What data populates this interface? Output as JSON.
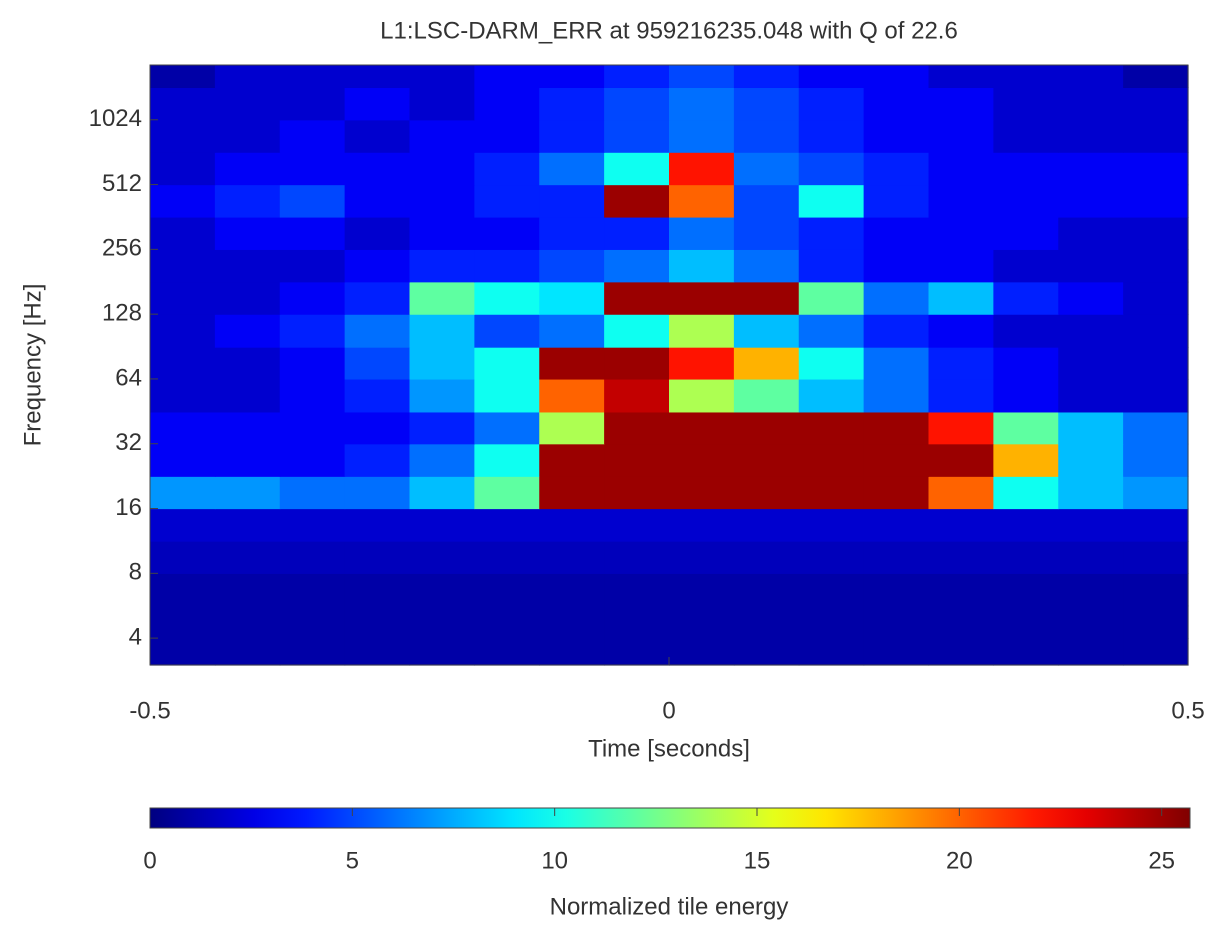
{
  "chart_data": {
    "type": "heatmap",
    "title": "L1:LSC-DARM_ERR at 959216235.048 with Q of 22.6",
    "xlabel": "Time [seconds]",
    "ylabel": "Frequency [Hz]",
    "colorbar_label": "Normalized tile energy",
    "colormap": "jet",
    "log_y": true,
    "log_base": 2,
    "xlim": [
      -0.5,
      0.5
    ],
    "xticks": [
      -0.5,
      0,
      0.5
    ],
    "ylim": [
      3,
      1840
    ],
    "yticks": [
      4,
      8,
      16,
      32,
      64,
      128,
      256,
      512,
      1024
    ],
    "clim": [
      0,
      25.7
    ],
    "cticks": [
      0,
      5,
      10,
      15,
      20,
      25
    ],
    "x_edges": [
      -0.5,
      -0.4375,
      -0.375,
      -0.3125,
      -0.25,
      -0.1875,
      -0.125,
      -0.0625,
      0,
      0.0625,
      0.125,
      0.1875,
      0.25,
      0.3125,
      0.375,
      0.4375,
      0.5
    ],
    "y_edges": [
      3,
      4,
      5.66,
      8,
      11.3,
      16,
      22.6,
      32,
      45,
      64,
      90,
      128,
      181,
      256,
      362,
      512,
      724,
      1024,
      1448,
      1840
    ],
    "z": [
      [
        1,
        1,
        1,
        1,
        1,
        1,
        1,
        1,
        1,
        1,
        1,
        1,
        1,
        1,
        1,
        1
      ],
      [
        1,
        1,
        1,
        1,
        1,
        1,
        1,
        1,
        1,
        1,
        1,
        1,
        1,
        1,
        1,
        1
      ],
      [
        1,
        1,
        1,
        1,
        1,
        1,
        1,
        1,
        1,
        1,
        1,
        1,
        1,
        1,
        1,
        1
      ],
      [
        1.5,
        1.5,
        1.5,
        1.5,
        1.5,
        1.5,
        1.5,
        1.5,
        1.5,
        1.5,
        1.5,
        1.5,
        1.5,
        1.5,
        1.5,
        1.5
      ],
      [
        2,
        2,
        2,
        2,
        2,
        2,
        2,
        2,
        2,
        2,
        2,
        2,
        2,
        2,
        2,
        2
      ],
      [
        7,
        7,
        6,
        6,
        8,
        12,
        25,
        25,
        25,
        25,
        25,
        25,
        20,
        10,
        8,
        7
      ],
      [
        3,
        3,
        3,
        4,
        6,
        10,
        25,
        25,
        25,
        25,
        25,
        25,
        25,
        18,
        8,
        6
      ],
      [
        3,
        3,
        3,
        3,
        4,
        6,
        14,
        25,
        25,
        25,
        25,
        25,
        22,
        12,
        8,
        6
      ],
      [
        2,
        2,
        3,
        4,
        7,
        10,
        20,
        24,
        14,
        12,
        8,
        6,
        4,
        3,
        2,
        2
      ],
      [
        2,
        2,
        3,
        5,
        8,
        10,
        25,
        25,
        22,
        18,
        10,
        6,
        4,
        3,
        2,
        2
      ],
      [
        2,
        3,
        4,
        6,
        8,
        5,
        6,
        10,
        14,
        8,
        6,
        4,
        3,
        2,
        2,
        2
      ],
      [
        2,
        2,
        3,
        4,
        12,
        10,
        9,
        25,
        25,
        25,
        12,
        6,
        8,
        4,
        3,
        2
      ],
      [
        2,
        2,
        2,
        3,
        4,
        4,
        5,
        6,
        8,
        6,
        4,
        3,
        3,
        2,
        2,
        2
      ],
      [
        2,
        3,
        3,
        2,
        3,
        3,
        4,
        4,
        6,
        5,
        4,
        3,
        3,
        3,
        2,
        2
      ],
      [
        3,
        4,
        5,
        3,
        3,
        4,
        4,
        25,
        20,
        5,
        10,
        4,
        3,
        3,
        3,
        3
      ],
      [
        2,
        3,
        3,
        3,
        3,
        4,
        6,
        10,
        22,
        6,
        5,
        4,
        3,
        3,
        3,
        3
      ],
      [
        2,
        2,
        3,
        2,
        3,
        3,
        4,
        5,
        6,
        5,
        4,
        3,
        3,
        2,
        2,
        2
      ],
      [
        2,
        2,
        2,
        3,
        2,
        3,
        4,
        5,
        6,
        5,
        4,
        3,
        3,
        2,
        2,
        2
      ],
      [
        1,
        2,
        2,
        2,
        2,
        3,
        3,
        4,
        5,
        4,
        3,
        3,
        2,
        2,
        2,
        1
      ]
    ]
  }
}
